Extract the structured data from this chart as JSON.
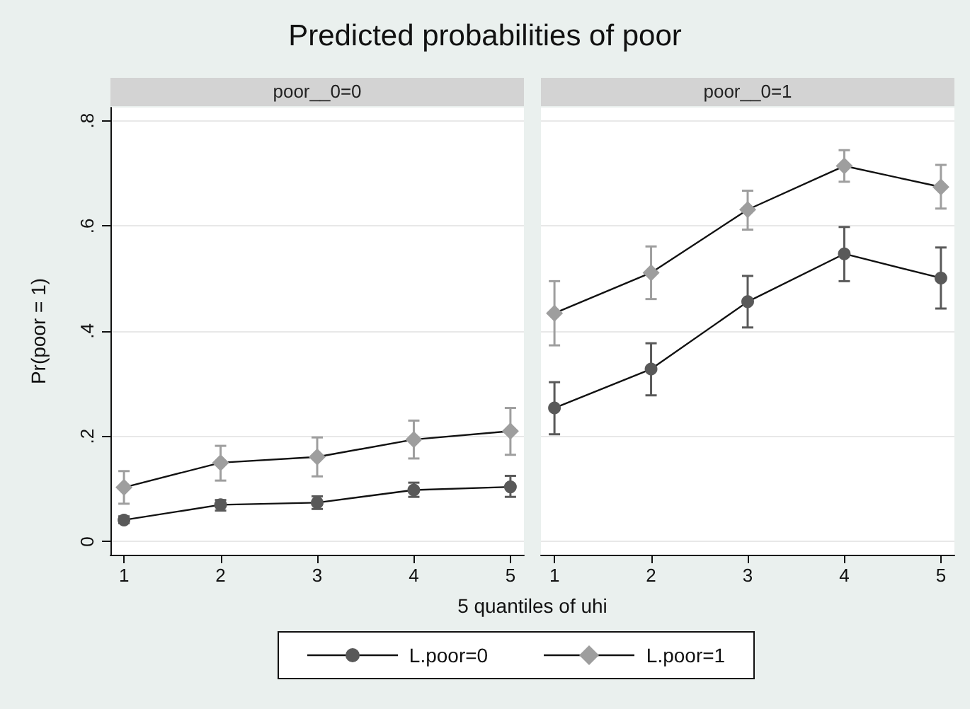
{
  "chart_data": [
    {
      "type": "line",
      "title": "Predicted probabilities of poor",
      "subtitle": "poor__0=0",
      "xlabel": "5 quantiles of uhi",
      "ylabel": "Pr(poor = 1)",
      "x": [
        1,
        2,
        3,
        4,
        5
      ],
      "xlim": [
        0.86,
        5.14
      ],
      "xticks": [
        1,
        2,
        3,
        4,
        5
      ],
      "ylim": [
        -0.025,
        0.825
      ],
      "yticks": [
        0,
        {
          "value": 0.2,
          "label": ".2"
        },
        {
          "value": 0.4,
          "label": ".4"
        },
        {
          "value": 0.6,
          "label": ".6"
        },
        {
          "value": 0.8,
          "label": ".8"
        }
      ],
      "grid": "y",
      "legend": "bottom",
      "series": [
        {
          "name": "L.poor=0",
          "color": "#595959",
          "marker": "circle",
          "values": [
            0.041,
            0.07,
            0.074,
            0.098,
            0.104
          ],
          "errors": [
            [
              0.035,
              0.048
            ],
            [
              0.059,
              0.079
            ],
            [
              0.062,
              0.086
            ],
            [
              0.085,
              0.112
            ],
            [
              0.085,
              0.125
            ]
          ]
        },
        {
          "name": "L.poor=1",
          "color": "#9e9e9e",
          "marker": "diamond",
          "values": [
            0.103,
            0.15,
            0.161,
            0.194,
            0.21
          ],
          "errors": [
            [
              0.072,
              0.134
            ],
            [
              0.116,
              0.182
            ],
            [
              0.124,
              0.198
            ],
            [
              0.158,
              0.23
            ],
            [
              0.165,
              0.254
            ]
          ]
        }
      ]
    },
    {
      "type": "line",
      "subtitle": "poor__0=1",
      "x": [
        1,
        2,
        3,
        4,
        5
      ],
      "xlim": [
        0.86,
        5.14
      ],
      "xticks": [
        1,
        2,
        3,
        4,
        5
      ],
      "ylim": [
        -0.025,
        0.825
      ],
      "yticks": [
        0,
        0.2,
        0.4,
        0.6,
        0.8
      ],
      "grid": "y",
      "tick_labels": "x",
      "series": [
        {
          "name": "L.poor=0",
          "color": "#595959",
          "marker": "circle",
          "values": [
            0.254,
            0.328,
            0.456,
            0.547,
            0.501
          ],
          "errors": [
            [
              0.204,
              0.303
            ],
            [
              0.278,
              0.377
            ],
            [
              0.407,
              0.505
            ],
            [
              0.495,
              0.598
            ],
            [
              0.443,
              0.559
            ]
          ]
        },
        {
          "name": "L.poor=1",
          "color": "#9e9e9e",
          "marker": "diamond",
          "values": [
            0.434,
            0.511,
            0.631,
            0.714,
            0.674
          ],
          "errors": [
            [
              0.373,
              0.495
            ],
            [
              0.461,
              0.561
            ],
            [
              0.593,
              0.667
            ],
            [
              0.684,
              0.744
            ],
            [
              0.633,
              0.716
            ]
          ]
        }
      ]
    }
  ]
}
